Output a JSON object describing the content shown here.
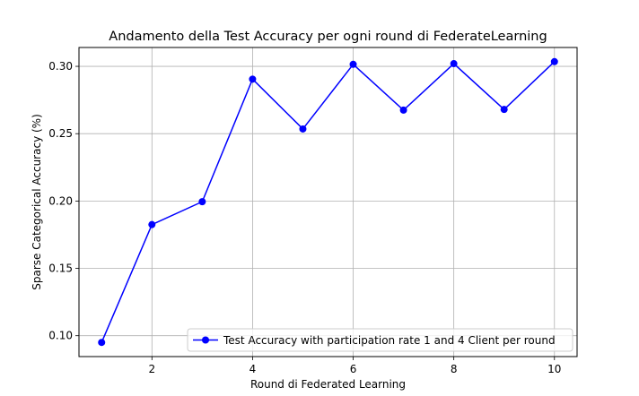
{
  "chart_data": {
    "type": "line",
    "title": "Andamento della Test Accuracy per ogni round di FederateLearning",
    "xlabel": "Round di Federated Learning",
    "ylabel": "Sparse Categorical Accuracy (%)",
    "x": [
      1,
      2,
      3,
      4,
      5,
      6,
      7,
      8,
      9,
      10
    ],
    "series": [
      {
        "name": "Test Accuracy with participation rate 1 and 4 Client per round",
        "values": [
          0.095,
          0.1825,
          0.1995,
          0.2905,
          0.2535,
          0.3015,
          0.2675,
          0.302,
          0.268,
          0.3035
        ],
        "color": "#0000ff",
        "marker": "circle"
      }
    ],
    "xlim": [
      0.55,
      10.45
    ],
    "ylim": [
      0.0845,
      0.314
    ],
    "xticks": [
      2,
      4,
      6,
      8,
      10
    ],
    "yticks": [
      0.1,
      0.15,
      0.2,
      0.25,
      0.3
    ],
    "ytick_labels": [
      "0.10",
      "0.15",
      "0.20",
      "0.25",
      "0.30"
    ],
    "grid": true,
    "legend_position": "lower-right"
  }
}
